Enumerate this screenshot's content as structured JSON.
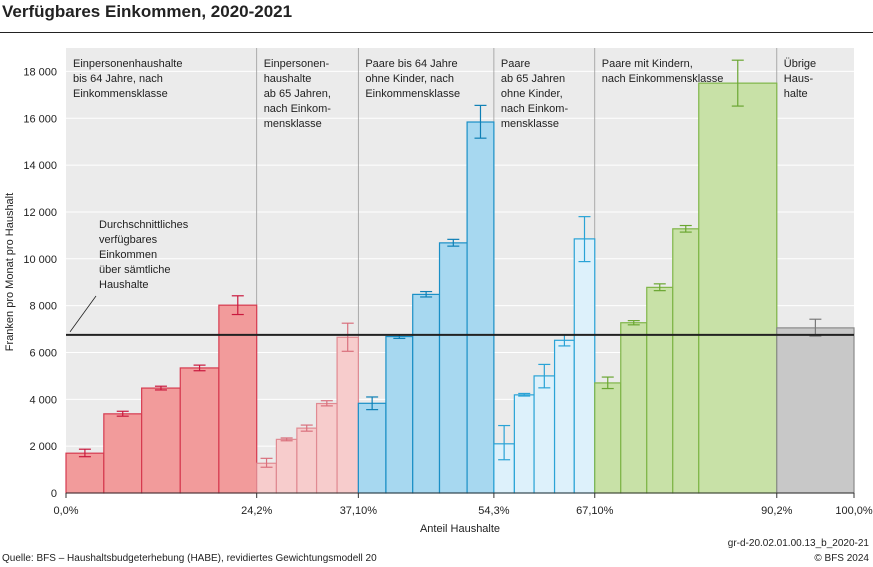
{
  "title": "Verfügbares Einkommen, 2020-2021",
  "source": "Quelle: BFS – Haushaltsbudgeterhebung (HABE), revidiertes Gewichtungsmodell 20",
  "code": "gr-d-20.02.01.00.13_b_2020-21",
  "copyright": "© BFS 2024",
  "chart_data": {
    "type": "bar",
    "title": "Verfügbares Einkommen, 2020-2021",
    "xlabel": "Anteil Haushalte",
    "ylabel": "Franken pro Monat pro Haushalt",
    "ylim": [
      0,
      19000
    ],
    "xlim": [
      0,
      100
    ],
    "yticks": [
      0,
      2000,
      4000,
      6000,
      8000,
      10000,
      12000,
      14000,
      16000,
      18000
    ],
    "ytick_labels": [
      "0",
      "2 000",
      "4 000",
      "6 000",
      "8 000",
      "10 000",
      "12 000",
      "14 000",
      "16 000",
      "18 000"
    ],
    "xticks": [
      0,
      24.2,
      37.1,
      54.3,
      67.1,
      90.2,
      100
    ],
    "xtick_labels": [
      "0,0%",
      "24,2%",
      "37,10%",
      "54,3%",
      "67,10%",
      "90,2%",
      "100,0%"
    ],
    "average": {
      "value": 6750,
      "label": [
        "Durchschnittliches",
        "verfügbares",
        "Einkommen",
        "über sämtliche",
        "Haushalte"
      ]
    },
    "groups": [
      {
        "name": [
          "Einpersonenhaushalte",
          "bis 64 Jahre, nach",
          "Einkommensklasse"
        ],
        "x0": 0,
        "x1": 24.2,
        "fill": "#f29b9b",
        "stroke": "#d63a4f",
        "err": "#c9193e",
        "bars": [
          {
            "x0": 0,
            "x1": 4.8,
            "value": 1700,
            "err": [
              1550,
              1870
            ]
          },
          {
            "x0": 4.8,
            "x1": 9.6,
            "value": 3380,
            "err": [
              3280,
              3490
            ]
          },
          {
            "x0": 9.6,
            "x1": 14.5,
            "value": 4480,
            "err": [
              4400,
              4560
            ]
          },
          {
            "x0": 14.5,
            "x1": 19.4,
            "value": 5340,
            "err": [
              5220,
              5460
            ]
          },
          {
            "x0": 19.4,
            "x1": 24.2,
            "value": 8020,
            "err": [
              7620,
              8420
            ]
          }
        ]
      },
      {
        "name": [
          "Einpersonen-",
          "haushalte",
          "ab 65 Jahren,",
          "nach Einkom-",
          "mensklasse"
        ],
        "x0": 24.2,
        "x1": 37.1,
        "fill": "#f7cccc",
        "stroke": "#e08a92",
        "err": "#d9707d",
        "bars": [
          {
            "x0": 24.2,
            "x1": 26.7,
            "value": 1270,
            "err": [
              1100,
              1480
            ]
          },
          {
            "x0": 26.7,
            "x1": 29.3,
            "value": 2290,
            "err": [
              2230,
              2350
            ]
          },
          {
            "x0": 29.3,
            "x1": 31.8,
            "value": 2770,
            "err": [
              2640,
              2900
            ]
          },
          {
            "x0": 31.8,
            "x1": 34.4,
            "value": 3820,
            "err": [
              3720,
              3940
            ]
          },
          {
            "x0": 34.4,
            "x1": 37.1,
            "value": 6650,
            "err": [
              6050,
              7250
            ]
          }
        ]
      },
      {
        "name": [
          "Paare bis 64 Jahre",
          "ohne Kinder, nach",
          "Einkommensklasse"
        ],
        "x0": 37.1,
        "x1": 54.3,
        "fill": "#a7d8f0",
        "stroke": "#1a8fc6",
        "err": "#0e7fb5",
        "bars": [
          {
            "x0": 37.1,
            "x1": 40.6,
            "value": 3830,
            "err": [
              3560,
              4100
            ]
          },
          {
            "x0": 40.6,
            "x1": 44.0,
            "value": 6680,
            "err": [
              6600,
              6760
            ]
          },
          {
            "x0": 44.0,
            "x1": 47.4,
            "value": 8480,
            "err": [
              8370,
              8600
            ]
          },
          {
            "x0": 47.4,
            "x1": 50.9,
            "value": 10680,
            "err": [
              10540,
              10830
            ]
          },
          {
            "x0": 50.9,
            "x1": 54.3,
            "value": 15840,
            "err": [
              15150,
              16550
            ]
          }
        ]
      },
      {
        "name": [
          "Paare",
          "ab 65 Jahren",
          "ohne Kinder,",
          "nach Einkom-",
          "mensklasse"
        ],
        "x0": 54.3,
        "x1": 67.1,
        "fill": "#ddf1fb",
        "stroke": "#2aa3d6",
        "err": "#2aa3d6",
        "bars": [
          {
            "x0": 54.3,
            "x1": 56.9,
            "value": 2100,
            "err": [
              1420,
              2880
            ]
          },
          {
            "x0": 56.9,
            "x1": 59.4,
            "value": 4190,
            "err": [
              4140,
              4250
            ]
          },
          {
            "x0": 59.4,
            "x1": 62.0,
            "value": 5000,
            "err": [
              4490,
              5490
            ]
          },
          {
            "x0": 62.0,
            "x1": 64.5,
            "value": 6520,
            "err": [
              6280,
              6760
            ]
          },
          {
            "x0": 64.5,
            "x1": 67.1,
            "value": 10850,
            "err": [
              9880,
              11800
            ]
          }
        ]
      },
      {
        "name": [
          "Paare mit Kindern,",
          "nach Einkommensklasse"
        ],
        "x0": 67.1,
        "x1": 90.2,
        "fill": "#c8e1a7",
        "stroke": "#7fb548",
        "err": "#6aa632",
        "bars": [
          {
            "x0": 67.1,
            "x1": 70.4,
            "value": 4700,
            "err": [
              4460,
              4950
            ]
          },
          {
            "x0": 70.4,
            "x1": 73.7,
            "value": 7270,
            "err": [
              7180,
              7360
            ]
          },
          {
            "x0": 73.7,
            "x1": 77.0,
            "value": 8780,
            "err": [
              8640,
              8930
            ]
          },
          {
            "x0": 77.0,
            "x1": 80.3,
            "value": 11280,
            "err": [
              11140,
              11420
            ]
          },
          {
            "x0": 80.3,
            "x1": 90.2,
            "value": 17500,
            "err": [
              16520,
              18480
            ]
          }
        ]
      },
      {
        "name": [
          "Übrige",
          "Haus-",
          "halte"
        ],
        "x0": 90.2,
        "x1": 100,
        "fill": "#c8c8c8",
        "stroke": "#8a8a8a",
        "err": "#7a7a7a",
        "bars": [
          {
            "x0": 90.2,
            "x1": 100,
            "value": 7050,
            "err": [
              6700,
              7420
            ]
          }
        ]
      }
    ]
  }
}
